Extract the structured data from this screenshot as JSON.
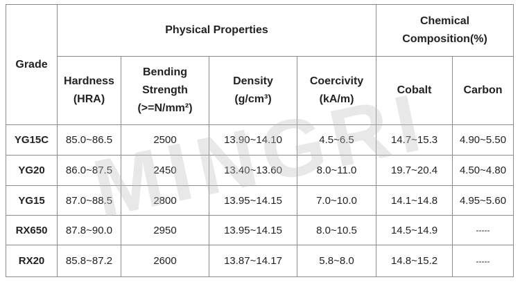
{
  "headers": {
    "grade": "Grade",
    "physical_properties": "Physical Properties",
    "chemical_composition": "Chemical\nComposition(%)",
    "hardness": "Hardness\n(HRA)",
    "bending_strength": "Bending\nStrength\n(>=N/mm²)",
    "density": "Density\n(g/cm³)",
    "coercivity": "Coercivity\n(kA/m)",
    "cobalt": "Cobalt",
    "carbon": "Carbon"
  },
  "rows": [
    {
      "grade": "YG15C",
      "hardness": "85.0~86.5",
      "bending": "2500",
      "density": "13.90~14.10",
      "coercivity": "4.5~6.5",
      "cobalt": "14.7~15.3",
      "carbon": "4.90~5.50"
    },
    {
      "grade": "YG20",
      "hardness": "86.0~87.5",
      "bending": "2450",
      "density": "13.40~13.60",
      "coercivity": "8.0~11.0",
      "cobalt": "19.7~20.4",
      "carbon": "4.50~4.80"
    },
    {
      "grade": "YG15",
      "hardness": "87.0~88.5",
      "bending": "2800",
      "density": "13.95~14.15",
      "coercivity": "7.0~10.0",
      "cobalt": "14.1~14.8",
      "carbon": "4.95~5.60"
    },
    {
      "grade": "RX650",
      "hardness": "87.8~90.0",
      "bending": "2950",
      "density": "13.95~14.15",
      "coercivity": "8.0~10.5",
      "cobalt": "14.5~14.9",
      "carbon": "-----"
    },
    {
      "grade": "RX20",
      "hardness": "85.8~87.2",
      "bending": "2600",
      "density": "13.87~14.17",
      "coercivity": "5.8~8.0",
      "cobalt": "14.8~15.2",
      "carbon": "-----"
    }
  ],
  "watermark": "MINGRI"
}
